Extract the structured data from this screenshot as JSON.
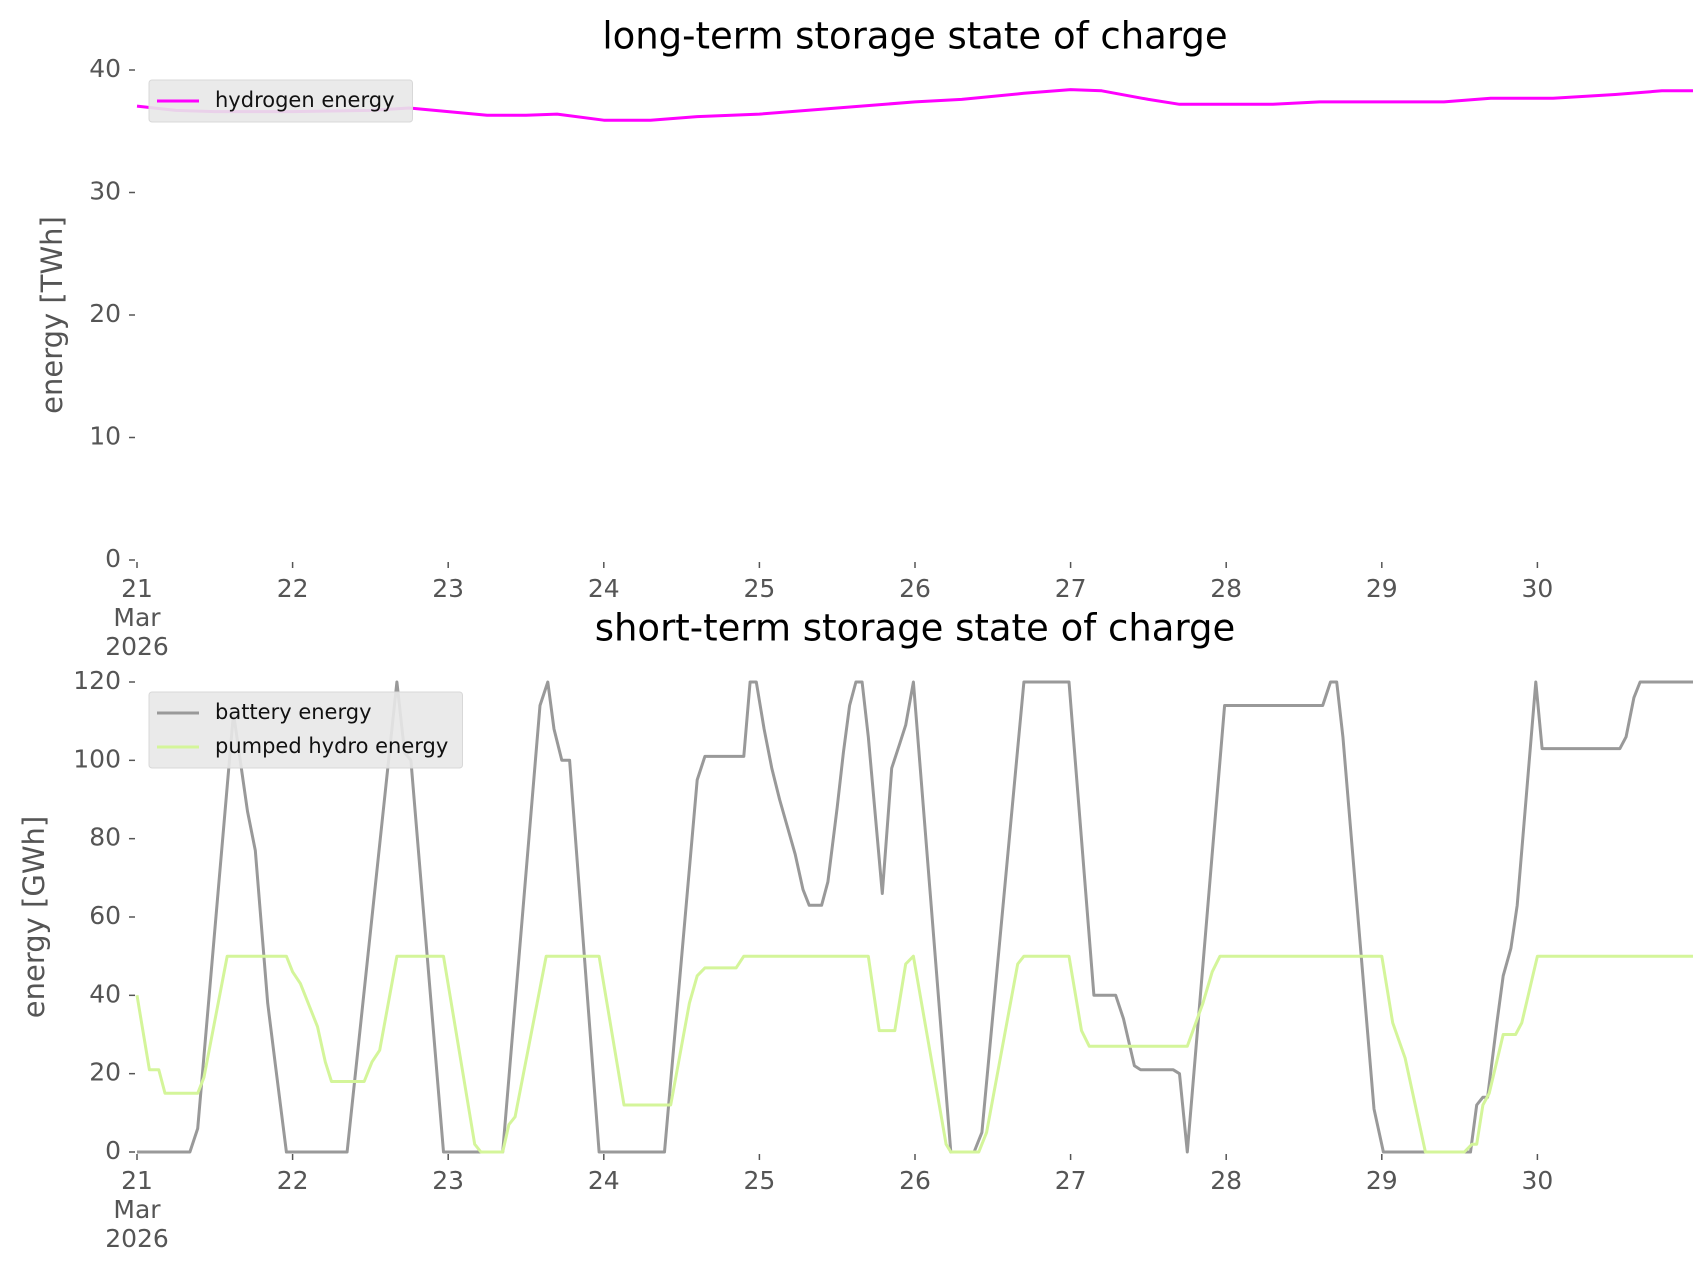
{
  "chart_data": [
    {
      "type": "line",
      "title": "long-term storage state of charge",
      "y_label": "energy [TWh]",
      "xlim": [
        21,
        31
      ],
      "xticks": [
        {
          "value": 21,
          "label": [
            "21",
            "Mar",
            "2026"
          ]
        },
        22,
        23,
        24,
        25,
        26,
        27,
        28,
        29,
        30
      ],
      "ylim": [
        0,
        40
      ],
      "yticks": [
        0,
        10,
        20,
        30,
        40
      ],
      "legend": "upper left",
      "grid": false,
      "series": [
        {
          "name": "hydrogen energy",
          "color": "#ff00ff",
          "x": [
            21,
            21.25,
            21.5,
            22,
            22.5,
            22.75,
            23,
            23.25,
            23.5,
            23.7,
            24,
            24.3,
            24.6,
            25,
            25.5,
            26,
            26.3,
            26.7,
            27,
            27.2,
            27.5,
            27.7,
            28,
            28.3,
            28.6,
            29,
            29.4,
            29.7,
            30.1,
            30.5,
            30.8,
            31
          ],
          "values": [
            37.05,
            36.7,
            36.6,
            36.6,
            36.7,
            36.9,
            36.6,
            36.3,
            36.3,
            36.4,
            35.9,
            35.9,
            36.2,
            36.4,
            36.9,
            37.4,
            37.6,
            38.1,
            38.4,
            38.3,
            37.6,
            37.2,
            37.2,
            37.2,
            37.4,
            37.4,
            37.4,
            37.7,
            37.7,
            38.0,
            38.3,
            38.3
          ]
        }
      ]
    },
    {
      "type": "line",
      "title": "short-term storage state of charge",
      "y_label": "energy [GWh]",
      "xlim": [
        21,
        31
      ],
      "xticks": [
        {
          "value": 21,
          "label": [
            "21",
            "Mar",
            "2026"
          ]
        },
        22,
        23,
        24,
        25,
        26,
        27,
        28,
        29,
        30
      ],
      "ylim": [
        0,
        120
      ],
      "yticks": [
        0,
        20,
        40,
        60,
        80,
        100,
        120
      ],
      "legend": "upper left",
      "grid": false,
      "series": [
        {
          "name": "battery energy",
          "color": "#999999",
          "x": [
            21,
            21.34,
            21.39,
            21.62,
            21.71,
            21.76,
            21.84,
            21.89,
            21.96,
            22.35,
            22.67,
            22.72,
            22.76,
            22.97,
            23.35,
            23.59,
            23.64,
            23.68,
            23.73,
            23.78,
            23.97,
            24.39,
            24.6,
            24.65,
            24.9,
            24.94,
            24.98,
            25.03,
            25.08,
            25.13,
            25.18,
            25.23,
            25.28,
            25.32,
            25.4,
            25.44,
            25.5,
            25.54,
            25.58,
            25.62,
            25.66,
            25.7,
            25.79,
            25.85,
            25.9,
            25.94,
            25.99,
            26.23,
            26.38,
            26.43,
            26.7,
            26.99,
            27.15,
            27.25,
            27.29,
            27.34,
            27.41,
            27.45,
            27.66,
            27.7,
            27.75,
            27.99,
            28.62,
            28.67,
            28.71,
            28.75,
            28.95,
            29.01,
            29.57,
            29.61,
            29.65,
            29.68,
            29.74,
            29.78,
            29.83,
            29.87,
            29.99,
            30.03,
            30.53,
            30.57,
            30.62,
            30.66,
            31
          ],
          "values": [
            0,
            0,
            6,
            112,
            87,
            77,
            38,
            22,
            0,
            0,
            120,
            102,
            100,
            0,
            0,
            114,
            120,
            108,
            100,
            100,
            0,
            0,
            95,
            101,
            101,
            120,
            120,
            108,
            98,
            90,
            83,
            76,
            67,
            63,
            63,
            69,
            88,
            102,
            114,
            120,
            120,
            106,
            66,
            98,
            104,
            109,
            120,
            0,
            0,
            5,
            120,
            120,
            40,
            40,
            40,
            34,
            22,
            21,
            21,
            20,
            0,
            114,
            114,
            120,
            120,
            106,
            11,
            0,
            0,
            12,
            14,
            14,
            33,
            45,
            52,
            63,
            120,
            103,
            103,
            106,
            116,
            120,
            120
          ]
        },
        {
          "name": "pumped hydro energy",
          "color": "#d4f59a",
          "x": [
            21,
            21.08,
            21.14,
            21.18,
            21.39,
            21.43,
            21.58,
            21.96,
            22.0,
            22.05,
            22.1,
            22.16,
            22.21,
            22.25,
            22.46,
            22.51,
            22.56,
            22.67,
            22.97,
            23.17,
            23.21,
            23.35,
            23.39,
            23.43,
            23.63,
            23.97,
            24.13,
            24.43,
            24.55,
            24.6,
            24.65,
            24.85,
            24.9,
            25.7,
            25.77,
            25.87,
            25.94,
            25.99,
            26.2,
            26.23,
            26.41,
            26.46,
            26.66,
            26.7,
            26.99,
            27.07,
            27.12,
            27.75,
            27.85,
            27.91,
            27.96,
            29.0,
            29.07,
            29.15,
            29.28,
            29.53,
            29.58,
            29.61,
            29.65,
            29.69,
            29.78,
            29.86,
            29.9,
            30.0,
            31
          ],
          "values": [
            40,
            21,
            21,
            15,
            15,
            19,
            50,
            50,
            46,
            43,
            38,
            32,
            23,
            18,
            18,
            23,
            26,
            50,
            50,
            2,
            0,
            0,
            7,
            9,
            50,
            50,
            12,
            12,
            38,
            45,
            47,
            47,
            50,
            50,
            31,
            31,
            48,
            50,
            2,
            0,
            0,
            5,
            48,
            50,
            50,
            31,
            27,
            27,
            38,
            46,
            50,
            50,
            33,
            24,
            0,
            0,
            2,
            2,
            12,
            15,
            30,
            30,
            33,
            50,
            50
          ]
        }
      ]
    }
  ]
}
